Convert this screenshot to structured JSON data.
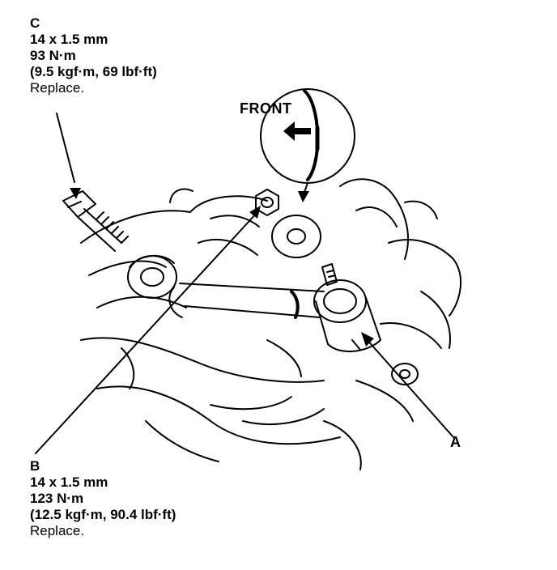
{
  "labels": {
    "c": {
      "letter": "C",
      "size": "14 x 1.5 mm",
      "torque": "93 N·m",
      "torque_alt": "(9.5 kgf·m, 69 lbf·ft)",
      "note": "Replace."
    },
    "b": {
      "letter": "B",
      "size": "14 x 1.5 mm",
      "torque": "123 N·m",
      "torque_alt": "(12.5 kgf·m, 90.4 lbf·ft)",
      "note": "Replace."
    },
    "a": {
      "letter": "A"
    }
  },
  "front_indicator": {
    "label": "FRONT"
  }
}
